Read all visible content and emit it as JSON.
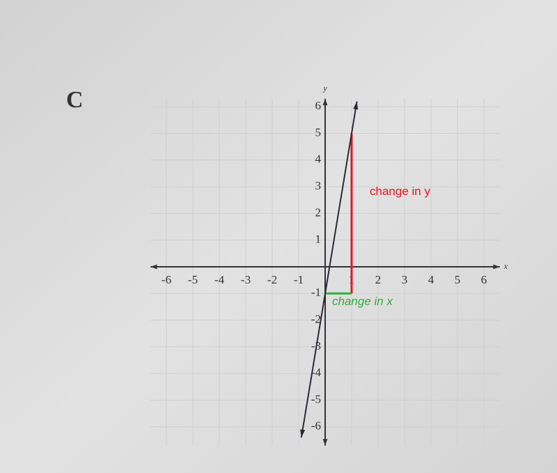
{
  "chart_data": {
    "type": "line",
    "label": "C",
    "x_label": "x",
    "y_label": "y",
    "xlim": [
      -6.6,
      6.6
    ],
    "ylim": [
      -6.7,
      6.3
    ],
    "xticks": [
      -6,
      -5,
      -4,
      -3,
      -2,
      -1,
      1,
      2,
      3,
      4,
      5,
      6
    ],
    "yticks": [
      -6,
      -5,
      -4,
      -3,
      -2,
      -1,
      1,
      2,
      3,
      4,
      5,
      6
    ],
    "grid": true,
    "series": [
      {
        "color": "#2a2a35",
        "x": [
          -0.9,
          0,
          1,
          1.2
        ],
        "values": [
          -6.4,
          -1,
          5,
          6.2
        ]
      }
    ],
    "annotations": [
      {
        "text": "change in y",
        "color": "#e8141c",
        "x": [
          1,
          1
        ],
        "y": [
          -1,
          5
        ]
      },
      {
        "text": "change in x",
        "color": "#2cb03c",
        "x": [
          0,
          1
        ],
        "y": [
          -1,
          -1
        ]
      }
    ]
  }
}
